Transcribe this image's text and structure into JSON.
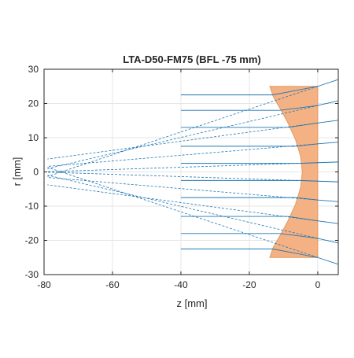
{
  "chart_data": {
    "type": "line",
    "title": "LTA-D50-FM75 (BFL -75 mm)",
    "xlabel": "z [mm]",
    "ylabel": "r [mm]",
    "xlim": [
      -80,
      6
    ],
    "ylim": [
      -30,
      30
    ],
    "xticks": [
      -80,
      -60,
      -40,
      -20,
      0
    ],
    "yticks": [
      -30,
      -20,
      -10,
      0,
      10,
      20,
      30
    ],
    "grid": true,
    "colors": {
      "rays": "#1f77b4",
      "lens_fill": "#f4b183",
      "lens_edge": "#e39a5e",
      "axes": "#262626",
      "grid": "#e6e6e6"
    },
    "lens": {
      "name": "LTA-D50-FM75",
      "outline": [
        [
          -14,
          25
        ],
        [
          0,
          25
        ],
        [
          0,
          -25
        ],
        [
          -14,
          -25
        ],
        [
          -13,
          -22
        ],
        [
          -11,
          -18.5
        ],
        [
          -8.8,
          -14.5
        ],
        [
          -6.5,
          -9.5
        ],
        [
          -5,
          -4.5
        ],
        [
          -4.5,
          0
        ],
        [
          -5,
          4.5
        ],
        [
          -6.5,
          9.5
        ],
        [
          -8.8,
          14.5
        ],
        [
          -11,
          18.5
        ],
        [
          -13,
          22
        ],
        [
          -14,
          25
        ]
      ]
    },
    "series": [
      {
        "r_in": 22.5,
        "z_in": -40,
        "z_lens": -13.2,
        "r_out": 25.0,
        "z_end": 6,
        "r_end": 27.0
      },
      {
        "r_in": 18.0,
        "z_in": -40,
        "z_lens": -11.0,
        "r_out": 19.4,
        "z_end": 6,
        "r_end": 20.8
      },
      {
        "r_in": 13.0,
        "z_in": -40,
        "z_lens": -8.8,
        "r_out": 14.3,
        "z_end": 6,
        "r_end": 15.1
      },
      {
        "r_in": 7.5,
        "z_in": -40,
        "z_lens": -6.5,
        "r_out": 8.2,
        "z_end": 6,
        "r_end": 8.7
      },
      {
        "r_in": 2.5,
        "z_in": -40,
        "z_lens": -5.0,
        "r_out": 2.7,
        "z_end": 6,
        "r_end": 2.9
      },
      {
        "r_in": -2.5,
        "z_in": -40,
        "z_lens": -5.0,
        "r_out": -2.7,
        "z_end": 6,
        "r_end": -2.9
      },
      {
        "r_in": -7.5,
        "z_in": -40,
        "z_lens": -6.5,
        "r_out": -8.2,
        "z_end": 6,
        "r_end": -8.7
      },
      {
        "r_in": -13.0,
        "z_in": -40,
        "z_lens": -8.8,
        "r_out": -14.3,
        "z_end": 6,
        "r_end": -15.1
      },
      {
        "r_in": -18.0,
        "z_in": -40,
        "z_lens": -11.0,
        "r_out": -19.4,
        "z_end": 6,
        "r_end": -20.8
      },
      {
        "r_in": -22.5,
        "z_in": -40,
        "z_lens": -13.2,
        "r_out": -25.0,
        "z_end": 6,
        "r_end": -27.0
      }
    ],
    "virtual_focus_z": -75
  }
}
